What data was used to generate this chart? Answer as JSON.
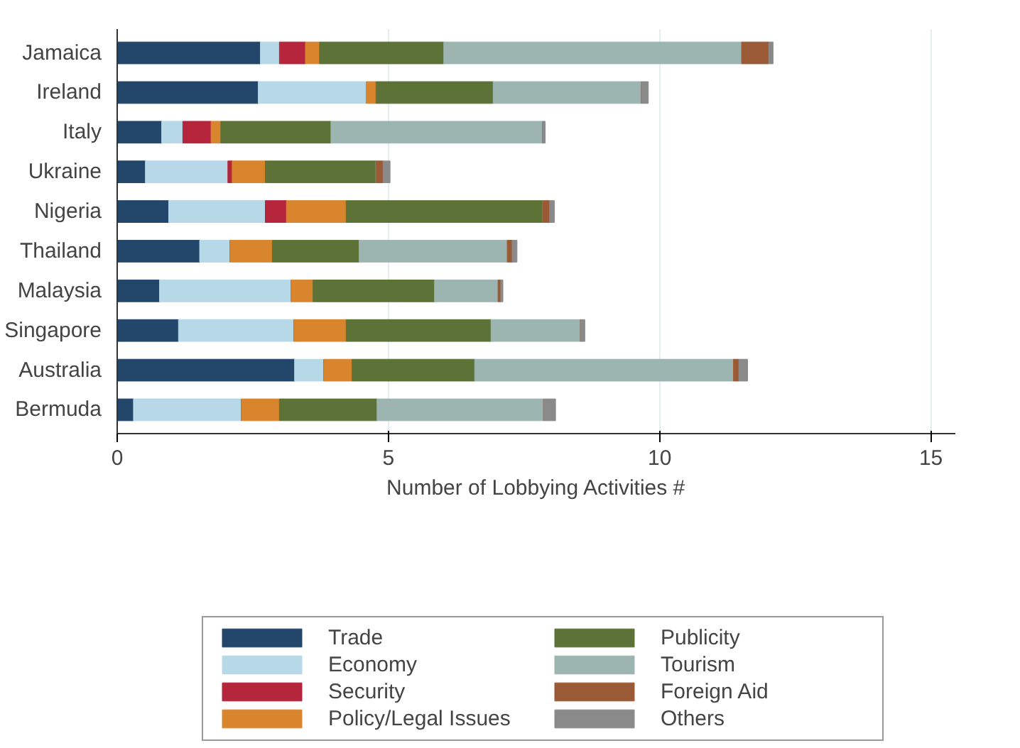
{
  "chart_data": {
    "type": "bar",
    "orientation": "horizontal",
    "stacked": true,
    "xlabel": "Number of Lobbying Activities #",
    "categories": [
      "Jamaica",
      "Ireland",
      "Italy",
      "Ukraine",
      "Nigeria",
      "Thailand",
      "Malaysia",
      "Singapore",
      "Australia",
      "Bermuda"
    ],
    "xlim": [
      0,
      15.45
    ],
    "xticks": [
      0,
      5,
      10,
      15
    ],
    "grid": "x",
    "legend": "bottom",
    "series": [
      {
        "name": "Trade",
        "color": "#23466b",
        "values": [
          2.64,
          2.6,
          0.82,
          0.52,
          0.95,
          1.52,
          0.78,
          1.13,
          3.27,
          0.3
        ]
      },
      {
        "name": "Economy",
        "color": "#b6d8e7",
        "values": [
          0.35,
          1.99,
          0.39,
          1.52,
          1.78,
          0.56,
          2.43,
          2.13,
          0.54,
          1.99
        ]
      },
      {
        "name": "Security",
        "color": "#b5253b",
        "values": [
          0.48,
          0,
          0.52,
          0.08,
          0.39,
          0,
          0,
          0,
          0,
          0
        ]
      },
      {
        "name": "Policy/Legal Issues",
        "color": "#d9852e",
        "values": [
          0.26,
          0.18,
          0.18,
          0.61,
          1.1,
          0.78,
          0.4,
          0.96,
          0.52,
          0.7
        ]
      },
      {
        "name": "Publicity",
        "color": "#5c7236",
        "values": [
          2.29,
          2.16,
          2.03,
          2.04,
          3.62,
          1.6,
          2.24,
          2.67,
          2.26,
          1.8
        ]
      },
      {
        "name": "Tourism",
        "color": "#9db5b0",
        "values": [
          5.49,
          2.73,
          3.9,
          0,
          0,
          2.73,
          1.17,
          1.65,
          4.77,
          3.07
        ]
      },
      {
        "name": "Foreign Aid",
        "color": "#9a5a35",
        "values": [
          0.5,
          0,
          0,
          0.13,
          0.13,
          0.09,
          0.05,
          0,
          0.1,
          0
        ]
      },
      {
        "name": "Others",
        "color": "#8a8a8a",
        "values": [
          0.08,
          0.13,
          0.05,
          0.13,
          0.09,
          0.09,
          0.04,
          0.08,
          0.16,
          0.22
        ]
      }
    ]
  }
}
